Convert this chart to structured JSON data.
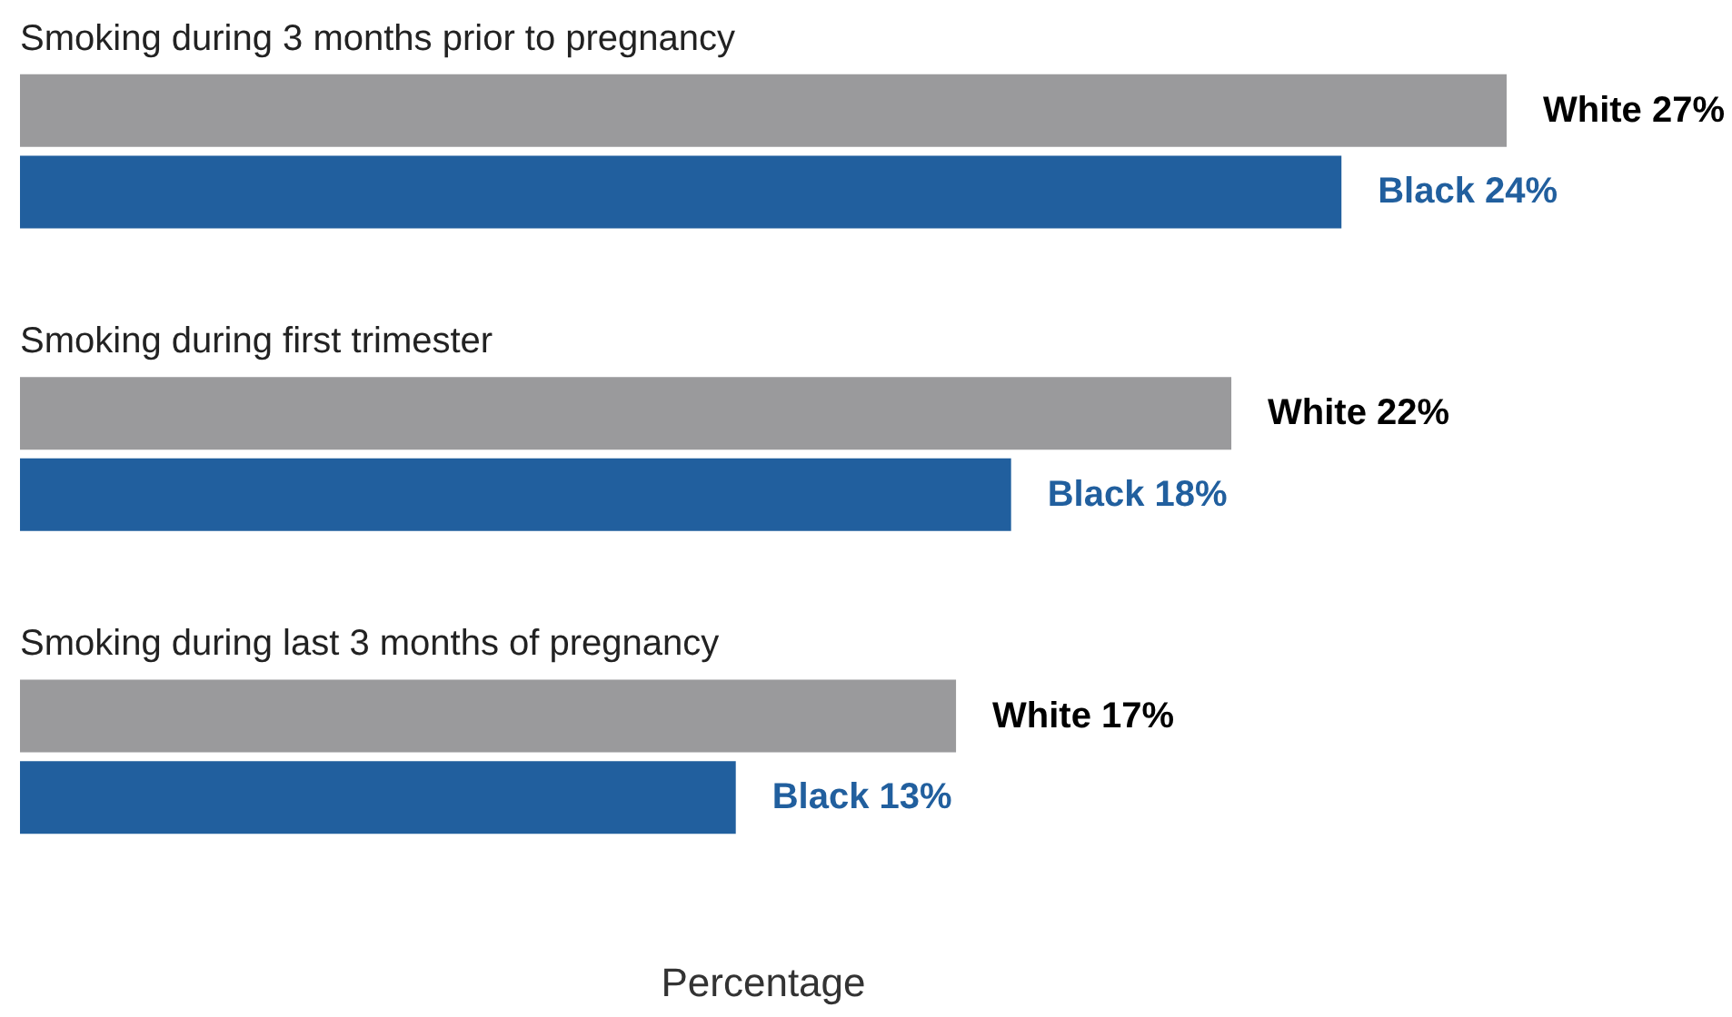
{
  "chart_data": {
    "type": "bar",
    "orientation": "horizontal",
    "xlabel": "Percentage",
    "categories": [
      "Smoking during 3 months prior to pregnancy",
      "Smoking during first trimester",
      "Smoking during last 3 months of pregnancy"
    ],
    "series": [
      {
        "color": "#9a9a9c",
        "values": [
          27,
          22,
          17
        ],
        "value_labels": [
          "White 27%",
          "White 22%",
          "White 17%"
        ]
      },
      {
        "color": "#215f9e",
        "values": [
          24,
          18,
          13
        ],
        "value_labels": [
          "Black 24%",
          "Black 18%",
          "Black 13%"
        ]
      }
    ],
    "tick_labels": "y"
  }
}
